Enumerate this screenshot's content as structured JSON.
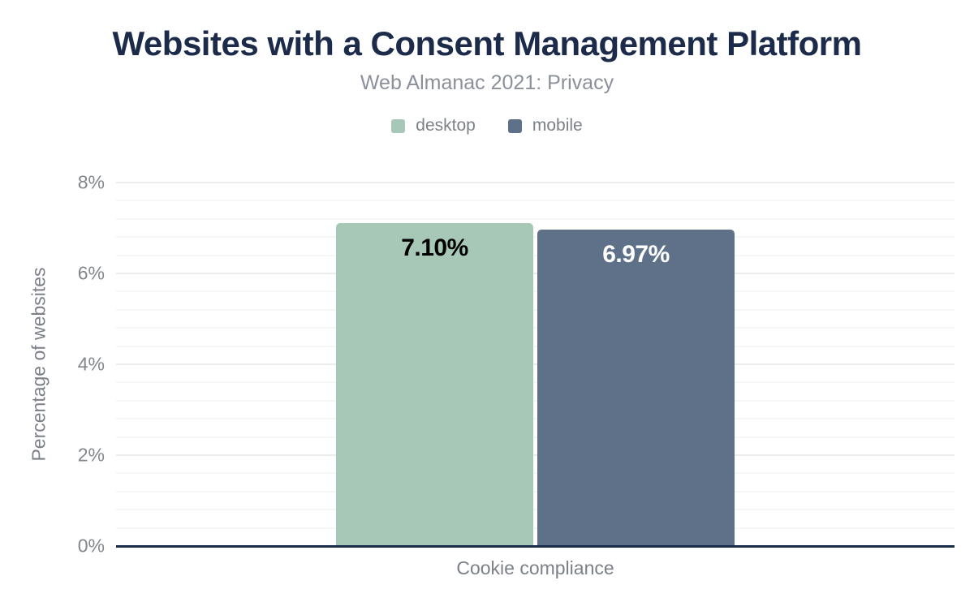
{
  "header": {
    "title": "Websites with a Consent Management Platform",
    "subtitle": "Web Almanac 2021: Privacy"
  },
  "chart_data": {
    "type": "bar",
    "title": "Websites with a Consent Management Platform",
    "subtitle": "Web Almanac 2021: Privacy",
    "categories": [
      "Cookie compliance"
    ],
    "series": [
      {
        "name": "desktop",
        "values": [
          7.1
        ],
        "data_labels": [
          "7.10%"
        ],
        "color": "#a7c8b7",
        "label_color": "#000000"
      },
      {
        "name": "mobile",
        "values": [
          6.97
        ],
        "data_labels": [
          "6.97%"
        ],
        "color": "#5f7189",
        "label_color": "#ffffff"
      }
    ],
    "xlabel": "Cookie compliance",
    "ylabel": "Percentage of websites",
    "ylim": [
      0,
      8
    ],
    "yticks": [
      0,
      2,
      4,
      6,
      8
    ],
    "ytick_labels": [
      "0%",
      "2%",
      "4%",
      "6%",
      "8%"
    ],
    "minor_tick_interval": 0.4,
    "grid": "horizontal-major-and-minor",
    "legend_position": "top",
    "colors": {
      "title_navy": "#1c2b4a",
      "axis_navy": "#1a2b49",
      "subtitle_gray": "#8b909b",
      "tick_gray": "#82868f",
      "label_gray": "#7b8089",
      "major_grid": "#ececec",
      "minor_grid": "#f6f6f6",
      "background": "#ffffff"
    }
  }
}
